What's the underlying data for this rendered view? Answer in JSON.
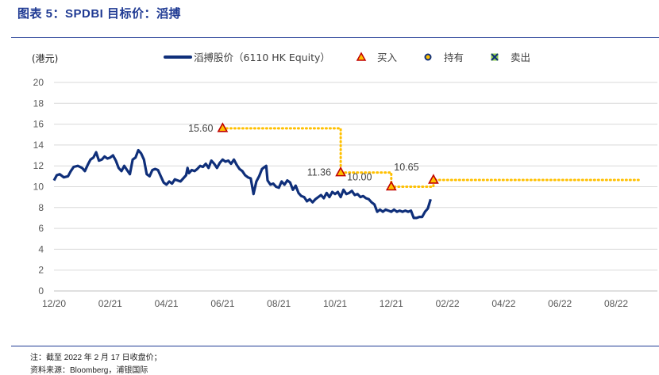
{
  "figure": {
    "title": "图表 5：SPDBI 目标价：滔搏",
    "note": "注：截至 2022 年 2 月 17 日收盘价；",
    "source": "资料来源：Bloomberg，浦银国际"
  },
  "colors": {
    "price_line": "#0f2f7a",
    "target_line": "#ffc000",
    "buy_marker": "#c00000",
    "buy_marker_fill": "#ffc000",
    "hold_marker": "#ffc000",
    "rule": "#1f3a93"
  },
  "chart_data": {
    "type": "line",
    "unit_label": "(港元)",
    "ylim": [
      0,
      20
    ],
    "y_ticks": [
      "0",
      "2",
      "4",
      "6",
      "8",
      "10",
      "12",
      "14",
      "16",
      "18",
      "20"
    ],
    "x_ticks": [
      "12/20",
      "02/21",
      "04/21",
      "06/21",
      "08/21",
      "10/21",
      "12/21",
      "02/22",
      "04/22",
      "06/22",
      "08/22"
    ],
    "x_range_months": [
      0,
      20.8
    ],
    "legend": [
      {
        "label": "滔搏股价（6110 HK Equity）",
        "kind": "line"
      },
      {
        "label": "买入",
        "kind": "triangle"
      },
      {
        "label": "持有",
        "kind": "circle"
      },
      {
        "label": "卖出",
        "kind": "cross"
      }
    ],
    "series": [
      {
        "name": "滔搏股价（6110 HK Equity）",
        "points": [
          [
            0.0,
            10.6
          ],
          [
            0.1,
            11.1
          ],
          [
            0.2,
            11.2
          ],
          [
            0.35,
            10.9
          ],
          [
            0.5,
            11.0
          ],
          [
            0.6,
            11.5
          ],
          [
            0.7,
            11.9
          ],
          [
            0.85,
            12.0
          ],
          [
            1.0,
            11.8
          ],
          [
            1.1,
            11.5
          ],
          [
            1.2,
            12.1
          ],
          [
            1.3,
            12.6
          ],
          [
            1.4,
            12.8
          ],
          [
            1.5,
            13.3
          ],
          [
            1.6,
            12.5
          ],
          [
            1.7,
            12.6
          ],
          [
            1.8,
            12.9
          ],
          [
            1.9,
            12.7
          ],
          [
            2.0,
            12.8
          ],
          [
            2.1,
            13.0
          ],
          [
            2.2,
            12.5
          ],
          [
            2.3,
            11.8
          ],
          [
            2.4,
            11.5
          ],
          [
            2.5,
            12.0
          ],
          [
            2.6,
            11.6
          ],
          [
            2.7,
            11.2
          ],
          [
            2.8,
            12.6
          ],
          [
            2.9,
            12.8
          ],
          [
            3.0,
            13.5
          ],
          [
            3.1,
            13.2
          ],
          [
            3.2,
            12.6
          ],
          [
            3.3,
            11.2
          ],
          [
            3.4,
            11.0
          ],
          [
            3.5,
            11.6
          ],
          [
            3.6,
            11.7
          ],
          [
            3.7,
            11.6
          ],
          [
            3.8,
            11.0
          ],
          [
            3.9,
            10.4
          ],
          [
            4.0,
            10.2
          ],
          [
            4.1,
            10.5
          ],
          [
            4.2,
            10.3
          ],
          [
            4.3,
            10.7
          ],
          [
            4.4,
            10.6
          ],
          [
            4.5,
            10.5
          ],
          [
            4.6,
            10.8
          ],
          [
            4.7,
            11.1
          ],
          [
            4.75,
            11.8
          ],
          [
            4.8,
            11.3
          ],
          [
            4.9,
            11.6
          ],
          [
            5.0,
            11.5
          ],
          [
            5.1,
            11.7
          ],
          [
            5.2,
            12.0
          ],
          [
            5.3,
            11.9
          ],
          [
            5.4,
            12.2
          ],
          [
            5.5,
            11.8
          ],
          [
            5.6,
            12.5
          ],
          [
            5.7,
            12.2
          ],
          [
            5.8,
            11.8
          ],
          [
            5.9,
            12.3
          ],
          [
            6.0,
            12.6
          ],
          [
            6.1,
            12.4
          ],
          [
            6.2,
            12.5
          ],
          [
            6.3,
            12.2
          ],
          [
            6.4,
            12.6
          ],
          [
            6.5,
            12.1
          ],
          [
            6.6,
            11.7
          ],
          [
            6.7,
            11.5
          ],
          [
            6.8,
            11.1
          ],
          [
            6.9,
            10.9
          ],
          [
            7.0,
            10.8
          ],
          [
            7.1,
            9.3
          ],
          [
            7.2,
            10.5
          ],
          [
            7.3,
            11.0
          ],
          [
            7.4,
            11.7
          ],
          [
            7.45,
            11.8
          ],
          [
            7.55,
            12.0
          ],
          [
            7.6,
            10.6
          ],
          [
            7.7,
            10.2
          ],
          [
            7.8,
            10.3
          ],
          [
            7.9,
            10.0
          ],
          [
            8.0,
            9.9
          ],
          [
            8.1,
            10.5
          ],
          [
            8.2,
            10.2
          ],
          [
            8.3,
            10.6
          ],
          [
            8.4,
            10.4
          ],
          [
            8.5,
            9.7
          ],
          [
            8.6,
            10.1
          ],
          [
            8.7,
            9.4
          ],
          [
            8.8,
            9.1
          ],
          [
            8.9,
            9.0
          ],
          [
            9.0,
            8.6
          ],
          [
            9.1,
            8.8
          ],
          [
            9.2,
            8.5
          ],
          [
            9.3,
            8.8
          ],
          [
            9.4,
            9.0
          ],
          [
            9.5,
            9.2
          ],
          [
            9.6,
            8.9
          ],
          [
            9.7,
            9.4
          ],
          [
            9.8,
            9.0
          ],
          [
            9.9,
            9.5
          ],
          [
            10.0,
            9.3
          ],
          [
            10.1,
            9.5
          ],
          [
            10.2,
            9.0
          ],
          [
            10.3,
            9.7
          ],
          [
            10.4,
            9.3
          ],
          [
            10.5,
            9.4
          ],
          [
            10.6,
            9.6
          ],
          [
            10.7,
            9.2
          ],
          [
            10.8,
            9.3
          ],
          [
            10.9,
            9.0
          ],
          [
            11.0,
            9.1
          ],
          [
            11.1,
            8.9
          ],
          [
            11.2,
            8.8
          ],
          [
            11.3,
            8.5
          ],
          [
            11.4,
            8.3
          ],
          [
            11.5,
            7.6
          ],
          [
            11.6,
            7.8
          ],
          [
            11.7,
            7.6
          ],
          [
            11.8,
            7.8
          ],
          [
            11.9,
            7.7
          ],
          [
            12.0,
            7.6
          ],
          [
            12.1,
            7.8
          ],
          [
            12.2,
            7.6
          ],
          [
            12.3,
            7.7
          ],
          [
            12.4,
            7.6
          ],
          [
            12.5,
            7.7
          ],
          [
            12.6,
            7.6
          ],
          [
            12.7,
            7.7
          ],
          [
            12.8,
            7.0
          ],
          [
            12.9,
            7.0
          ],
          [
            13.0,
            7.1
          ],
          [
            13.1,
            7.1
          ],
          [
            13.2,
            7.6
          ],
          [
            13.3,
            7.9
          ],
          [
            13.4,
            8.8
          ]
        ]
      },
      {
        "name": "目标价",
        "points": [
          [
            6.0,
            15.6
          ],
          [
            10.2,
            15.6
          ],
          [
            10.2,
            11.36
          ],
          [
            12.0,
            11.36
          ],
          [
            12.0,
            10.0
          ],
          [
            13.5,
            10.0
          ],
          [
            13.5,
            10.65
          ],
          [
            20.8,
            10.65
          ]
        ]
      }
    ],
    "buy_markers": [
      {
        "x": 6.0,
        "y": 15.6,
        "label": "15.60"
      },
      {
        "x": 10.2,
        "y": 11.36,
        "label": "11.36"
      },
      {
        "x": 12.0,
        "y": 10.0,
        "label": "10.00"
      },
      {
        "x": 13.5,
        "y": 10.65,
        "label": "10.65"
      }
    ]
  }
}
